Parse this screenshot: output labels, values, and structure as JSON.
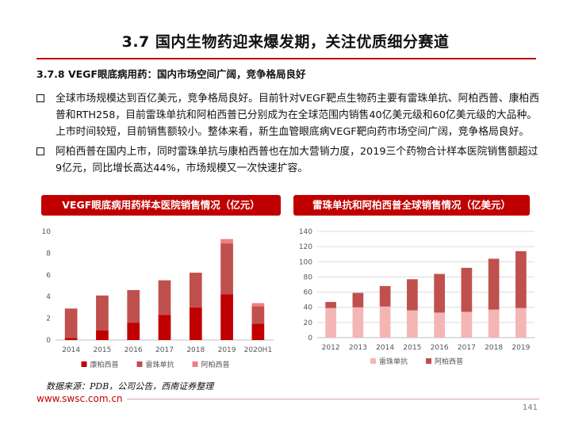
{
  "slide": {
    "title": "3.7 国内生物药迎来爆发期，关注优质细分赛道",
    "section_heading": "3.7.8 VEGF眼底病用药：国内市场空间广阔，竞争格局良好",
    "bullets": [
      "全球市场规模达到百亿美元，竞争格局良好。目前针对VEGF靶点生物药主要有雷珠单抗、阿柏西普、康柏西普和RTH258，目前雷珠单抗和阿柏西普已分别成为在全球范围内销售40亿美元级和60亿美元级的大品种。上市时间较短，目前销售额较小。整体来看，新生血管眼底病VEGF靶向药市场空间广阔，竞争格局良好。",
      "阿柏西普在国内上市，同时雷珠单抗与康柏西普也在加大营销力度，2019三个药物合计样本医院销售额超过9亿元，同比增长高达44%，市场规模又一次快速扩容。"
    ],
    "source": "数据来源：PDB，公司公告，西南证券整理",
    "footer_url": "www.swsc.com.cn",
    "page_number": "141"
  },
  "colors": {
    "accent": "#c00000",
    "series_kangbai": "#c00000",
    "series_leizhu": "#c0504d",
    "series_abai": "#f08080",
    "series_leizhu_global": "#f4b6b4",
    "series_abai_global": "#c0504d"
  },
  "chart_data": [
    {
      "type": "bar",
      "stacked": true,
      "title": "VEGF眼底病用药样本医院销售情况（亿元）",
      "categories": [
        "2014",
        "2015",
        "2016",
        "2017",
        "2018",
        "2019",
        "2020H1"
      ],
      "series": [
        {
          "name": "康柏西普",
          "values": [
            0.2,
            0.9,
            1.6,
            2.3,
            3.0,
            4.2,
            1.5
          ]
        },
        {
          "name": "雷珠单抗",
          "values": [
            2.7,
            3.2,
            3.0,
            3.2,
            3.2,
            4.7,
            1.6
          ]
        },
        {
          "name": "阿柏西普",
          "values": [
            0,
            0,
            0,
            0,
            0,
            0.4,
            0.3
          ]
        }
      ],
      "ylim": [
        0,
        10
      ],
      "yticks": [
        "0",
        "2",
        "4",
        "6",
        "8",
        "10"
      ],
      "legend": "bottom",
      "grid": false
    },
    {
      "type": "bar",
      "stacked": true,
      "title": "雷珠单抗和阿柏西普全球销售情况（亿美元）",
      "categories": [
        "2012",
        "2013",
        "2014",
        "2015",
        "2016",
        "2017",
        "2018",
        "2019"
      ],
      "series": [
        {
          "name": "雷珠单抗",
          "values": [
            39,
            40,
            41,
            36,
            33,
            34,
            37,
            39
          ]
        },
        {
          "name": "阿柏西普",
          "values": [
            8,
            19,
            27,
            41,
            51,
            58,
            67,
            75
          ]
        }
      ],
      "ylim": [
        0,
        140
      ],
      "yticks": [
        "0",
        "20",
        "40",
        "60",
        "80",
        "100",
        "120",
        "140"
      ],
      "legend": "bottom",
      "grid": true
    }
  ]
}
